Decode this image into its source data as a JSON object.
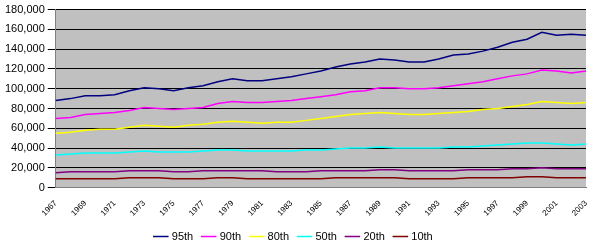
{
  "chart_data": {
    "type": "line",
    "categories": [
      "1967",
      null,
      "1969",
      null,
      "1971",
      null,
      "1973",
      null,
      "1975",
      null,
      "1977",
      null,
      "1979",
      null,
      "1981",
      null,
      "1983",
      null,
      "1985",
      null,
      "1987",
      null,
      "1989",
      null,
      "1991",
      null,
      "1993",
      null,
      "1995",
      null,
      "1997",
      null,
      "1999",
      null,
      "2001",
      null,
      "2003"
    ],
    "series": [
      {
        "name": "95th",
        "color": "#000080",
        "values": [
          88000,
          90000,
          93000,
          93000,
          94000,
          98000,
          101000,
          100000,
          98000,
          101000,
          103000,
          107000,
          110000,
          108000,
          108000,
          110000,
          112000,
          115000,
          118000,
          122000,
          125000,
          127000,
          130000,
          129000,
          127000,
          127000,
          130000,
          134000,
          135000,
          138000,
          142000,
          147000,
          150000,
          157000,
          154000,
          155000,
          154000
        ]
      },
      {
        "name": "90th",
        "color": "#ff00ff",
        "values": [
          70000,
          71000,
          74000,
          75000,
          76000,
          78000,
          81000,
          80000,
          79000,
          80000,
          81000,
          85000,
          87000,
          86000,
          86000,
          87000,
          88000,
          90000,
          92000,
          94000,
          97000,
          98000,
          101000,
          101000,
          100000,
          100000,
          101000,
          103000,
          105000,
          107000,
          110000,
          113000,
          115000,
          119000,
          118000,
          116000,
          118000
        ]
      },
      {
        "name": "80th",
        "color": "#ffff00",
        "values": [
          55000,
          56000,
          58000,
          59000,
          59000,
          61000,
          63000,
          62000,
          61000,
          63000,
          64000,
          66000,
          67000,
          66000,
          65000,
          66000,
          66000,
          68000,
          70000,
          72000,
          74000,
          75000,
          76000,
          75000,
          74000,
          74000,
          75000,
          76000,
          77000,
          79000,
          80000,
          82000,
          84000,
          87000,
          86000,
          85000,
          86000
        ]
      },
      {
        "name": "50th",
        "color": "#00ffff",
        "values": [
          33000,
          34000,
          35000,
          35000,
          35000,
          36000,
          37000,
          36000,
          36000,
          36000,
          37000,
          38000,
          38000,
          37000,
          37000,
          37000,
          37000,
          38000,
          38000,
          39000,
          40000,
          40000,
          41000,
          40000,
          40000,
          40000,
          40000,
          41000,
          41000,
          42000,
          43000,
          44000,
          45000,
          45000,
          44000,
          43000,
          44000
        ]
      },
      {
        "name": "20th",
        "color": "#800080",
        "values": [
          15000,
          16000,
          16000,
          16000,
          16000,
          17000,
          17000,
          17000,
          16000,
          16000,
          17000,
          17000,
          17000,
          17000,
          17000,
          16000,
          16000,
          16000,
          17000,
          17000,
          17000,
          17000,
          18000,
          18000,
          17000,
          17000,
          17000,
          17000,
          18000,
          18000,
          18000,
          19000,
          19000,
          20000,
          19000,
          19000,
          19000
        ]
      },
      {
        "name": "10th",
        "color": "#800000",
        "values": [
          9000,
          9000,
          9000,
          9000,
          9000,
          10000,
          10000,
          10000,
          9000,
          9000,
          9000,
          10000,
          10000,
          9000,
          9000,
          9000,
          9000,
          9000,
          9000,
          10000,
          10000,
          10000,
          10000,
          10000,
          9000,
          9000,
          9000,
          9000,
          10000,
          10000,
          10000,
          10000,
          11000,
          11000,
          10000,
          10000,
          10000
        ]
      }
    ],
    "ylim": [
      0,
      180000
    ],
    "yticks": [
      0,
      {
        "value": 20000,
        "label": "20,000"
      },
      {
        "value": 40000,
        "label": "40,000"
      },
      {
        "value": 60000,
        "label": "60,000"
      },
      {
        "value": 80000,
        "label": "80,000"
      },
      {
        "value": 100000,
        "label": "100,000"
      },
      {
        "value": 120000,
        "label": "120,000"
      },
      {
        "value": 140000,
        "label": "140,000"
      },
      {
        "value": 160000,
        "label": "160,000"
      },
      {
        "value": 180000,
        "label": "180,000"
      }
    ],
    "grid": true,
    "legend": "bottom"
  }
}
